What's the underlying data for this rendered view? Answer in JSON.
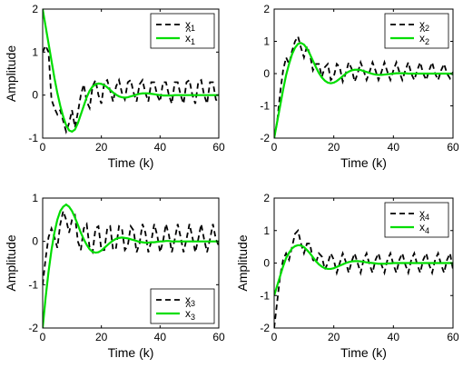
{
  "chart_data": [
    {
      "type": "line",
      "x": [
        0,
        1,
        2,
        3,
        4,
        5,
        6,
        7,
        8,
        9,
        10,
        11,
        12,
        13,
        14,
        15,
        16,
        17,
        18,
        19,
        20,
        21,
        22,
        23,
        24,
        25,
        26,
        27,
        28,
        29,
        30,
        31,
        32,
        33,
        34,
        35,
        36,
        37,
        38,
        39,
        40,
        41,
        42,
        43,
        44,
        45,
        46,
        47,
        48,
        49,
        50,
        51,
        52,
        53,
        54,
        55,
        56,
        57,
        58,
        59,
        60
      ],
      "series": [
        {
          "name": "x",
          "sub": "1",
          "hat": false,
          "color": "#000000",
          "dash": "6,4",
          "values": [
            1.0,
            1.15,
            1.0,
            -0.1,
            -0.3,
            -0.45,
            -0.35,
            -0.6,
            -0.85,
            -0.65,
            -0.35,
            -0.75,
            -0.4,
            0.0,
            0.25,
            -0.15,
            -0.3,
            0.2,
            0.35,
            0.0,
            -0.2,
            0.3,
            0.35,
            0.1,
            -0.15,
            0.2,
            0.35,
            0.05,
            -0.1,
            0.3,
            0.35,
            0.05,
            -0.15,
            0.25,
            0.35,
            0.05,
            -0.15,
            0.3,
            0.3,
            0.0,
            -0.15,
            0.3,
            0.3,
            0.0,
            -0.2,
            0.3,
            0.3,
            0.0,
            -0.2,
            0.3,
            0.35,
            0.0,
            -0.2,
            0.3,
            0.35,
            0.0,
            -0.2,
            0.3,
            0.3,
            -0.1,
            -0.2
          ]
        },
        {
          "name": "x",
          "sub": "1",
          "hat": true,
          "color": "#00dd00",
          "dash": "",
          "values": [
            2.0,
            1.6,
            1.2,
            0.8,
            0.4,
            0.05,
            -0.25,
            -0.5,
            -0.7,
            -0.82,
            -0.85,
            -0.8,
            -0.65,
            -0.45,
            -0.25,
            -0.05,
            0.1,
            0.2,
            0.25,
            0.27,
            0.26,
            0.23,
            0.18,
            0.12,
            0.06,
            0.01,
            -0.03,
            -0.05,
            -0.06,
            -0.05,
            -0.03,
            -0.01,
            0.01,
            0.03,
            0.04,
            0.04,
            0.04,
            0.03,
            0.02,
            0.01,
            0.0,
            -0.01,
            -0.01,
            -0.01,
            -0.01,
            0.0,
            0.0,
            0.0,
            0.0,
            0.0,
            0.0,
            0.0,
            0.0,
            0.0,
            0.0,
            0.0,
            0.0,
            0.0,
            0.0,
            0.0,
            0.0
          ]
        }
      ],
      "xlabel": "Time (k)",
      "ylabel": "Amplitude",
      "xlim": [
        0,
        60
      ],
      "ylim": [
        -1,
        2
      ],
      "xticks": [
        "0",
        "20",
        "40",
        "60"
      ],
      "yticks": [
        "-1",
        "0",
        "1",
        "2"
      ],
      "legend": "top-right"
    },
    {
      "type": "line",
      "x": [
        0,
        1,
        2,
        3,
        4,
        5,
        6,
        7,
        8,
        9,
        10,
        11,
        12,
        13,
        14,
        15,
        16,
        17,
        18,
        19,
        20,
        21,
        22,
        23,
        24,
        25,
        26,
        27,
        28,
        29,
        30,
        31,
        32,
        33,
        34,
        35,
        36,
        37,
        38,
        39,
        40,
        41,
        42,
        43,
        44,
        45,
        46,
        47,
        48,
        49,
        50,
        51,
        52,
        53,
        54,
        55,
        56,
        57,
        58,
        59,
        60
      ],
      "series": [
        {
          "name": "x",
          "sub": "2",
          "hat": false,
          "color": "#000000",
          "dash": "6,4",
          "values": [
            -2.0,
            -1.5,
            -0.6,
            0.1,
            0.5,
            0.3,
            0.7,
            1.0,
            1.15,
            0.8,
            0.5,
            0.85,
            0.6,
            0.1,
            0.3,
            0.3,
            -0.1,
            0.2,
            0.3,
            -0.2,
            -0.1,
            0.3,
            0.2,
            -0.25,
            0.0,
            0.35,
            0.15,
            -0.25,
            0.0,
            0.35,
            0.1,
            -0.2,
            0.05,
            0.35,
            0.1,
            -0.2,
            0.05,
            0.35,
            0.05,
            -0.2,
            0.1,
            0.35,
            0.05,
            -0.2,
            0.1,
            0.35,
            0.0,
            -0.2,
            0.1,
            0.35,
            0.0,
            -0.2,
            0.1,
            0.35,
            0.0,
            -0.2,
            0.1,
            0.3,
            0.0,
            -0.15,
            0.05
          ]
        },
        {
          "name": "x",
          "sub": "2",
          "hat": true,
          "color": "#00dd00",
          "dash": "",
          "values": [
            -2.0,
            -1.5,
            -1.0,
            -0.5,
            -0.05,
            0.3,
            0.6,
            0.8,
            0.92,
            0.95,
            0.9,
            0.78,
            0.6,
            0.4,
            0.2,
            0.02,
            -0.12,
            -0.22,
            -0.28,
            -0.3,
            -0.28,
            -0.23,
            -0.16,
            -0.08,
            0.0,
            0.06,
            0.1,
            0.12,
            0.12,
            0.11,
            0.08,
            0.05,
            0.02,
            -0.01,
            -0.03,
            -0.04,
            -0.04,
            -0.03,
            -0.02,
            -0.01,
            0.0,
            0.01,
            0.01,
            0.01,
            0.01,
            0.0,
            0.0,
            0.0,
            0.0,
            0.0,
            0.0,
            0.0,
            0.0,
            0.0,
            0.0,
            0.0,
            0.0,
            0.0,
            0.0,
            0.0,
            0.0
          ]
        }
      ],
      "xlabel": "Time (k)",
      "ylabel": "",
      "xlim": [
        0,
        60
      ],
      "ylim": [
        -2,
        2
      ],
      "xticks": [
        "0",
        "20",
        "40",
        "60"
      ],
      "yticks": [
        "-2",
        "-1",
        "0",
        "1",
        "2"
      ],
      "legend": "top-right"
    },
    {
      "type": "line",
      "x": [
        0,
        1,
        2,
        3,
        4,
        5,
        6,
        7,
        8,
        9,
        10,
        11,
        12,
        13,
        14,
        15,
        16,
        17,
        18,
        19,
        20,
        21,
        22,
        23,
        24,
        25,
        26,
        27,
        28,
        29,
        30,
        31,
        32,
        33,
        34,
        35,
        36,
        37,
        38,
        39,
        40,
        41,
        42,
        43,
        44,
        45,
        46,
        47,
        48,
        49,
        50,
        51,
        52,
        53,
        54,
        55,
        56,
        57,
        58,
        59,
        60
      ],
      "series": [
        {
          "name": "x",
          "sub": "3",
          "hat": false,
          "color": "#000000",
          "dash": "6,4",
          "values": [
            -1.0,
            -0.4,
            0.1,
            0.3,
            0.1,
            -0.15,
            0.4,
            0.7,
            0.5,
            0.2,
            0.5,
            0.6,
            0.0,
            -0.2,
            0.3,
            0.4,
            -0.15,
            -0.25,
            0.3,
            0.35,
            -0.2,
            -0.2,
            0.3,
            0.35,
            -0.2,
            -0.15,
            0.35,
            0.3,
            -0.2,
            -0.1,
            0.35,
            0.25,
            -0.25,
            -0.05,
            0.4,
            0.2,
            -0.25,
            0.0,
            0.4,
            0.15,
            -0.25,
            0.0,
            0.4,
            0.15,
            -0.25,
            0.05,
            0.4,
            0.1,
            -0.25,
            0.05,
            0.4,
            0.1,
            -0.25,
            0.05,
            0.4,
            0.05,
            -0.25,
            0.05,
            0.4,
            0.05,
            -0.1
          ]
        },
        {
          "name": "x",
          "sub": "3",
          "hat": true,
          "color": "#00dd00",
          "dash": "",
          "values": [
            -2.0,
            -1.3,
            -0.7,
            -0.2,
            0.2,
            0.5,
            0.7,
            0.8,
            0.85,
            0.8,
            0.7,
            0.55,
            0.38,
            0.2,
            0.05,
            -0.08,
            -0.18,
            -0.24,
            -0.26,
            -0.25,
            -0.21,
            -0.15,
            -0.09,
            -0.03,
            0.02,
            0.06,
            0.08,
            0.09,
            0.08,
            0.07,
            0.05,
            0.03,
            0.01,
            -0.01,
            -0.02,
            -0.03,
            -0.03,
            -0.02,
            -0.02,
            -0.01,
            0.0,
            0.0,
            0.01,
            0.01,
            0.0,
            0.0,
            0.0,
            0.0,
            0.0,
            0.0,
            0.0,
            0.0,
            0.0,
            0.0,
            0.0,
            0.0,
            0.0,
            0.0,
            0.0,
            0.0,
            0.0
          ]
        }
      ],
      "xlabel": "Time (k)",
      "ylabel": "Amplitude",
      "xlim": [
        0,
        60
      ],
      "ylim": [
        -2,
        1
      ],
      "xticks": [
        "0",
        "20",
        "40",
        "60"
      ],
      "yticks": [
        "-2",
        "-1",
        "0",
        "1"
      ],
      "legend": "bottom-right"
    },
    {
      "type": "line",
      "x": [
        0,
        1,
        2,
        3,
        4,
        5,
        6,
        7,
        8,
        9,
        10,
        11,
        12,
        13,
        14,
        15,
        16,
        17,
        18,
        19,
        20,
        21,
        22,
        23,
        24,
        25,
        26,
        27,
        28,
        29,
        30,
        31,
        32,
        33,
        34,
        35,
        36,
        37,
        38,
        39,
        40,
        41,
        42,
        43,
        44,
        45,
        46,
        47,
        48,
        49,
        50,
        51,
        52,
        53,
        54,
        55,
        56,
        57,
        58,
        59,
        60
      ],
      "series": [
        {
          "name": "x",
          "sub": "4",
          "hat": false,
          "color": "#000000",
          "dash": "6,4",
          "values": [
            -2.0,
            -1.2,
            -0.4,
            0.1,
            0.3,
            0.1,
            0.5,
            0.9,
            1.0,
            0.6,
            0.3,
            0.6,
            0.6,
            0.1,
            0.0,
            0.3,
            0.2,
            -0.2,
            0.0,
            0.3,
            0.1,
            -0.3,
            0.0,
            0.3,
            0.05,
            -0.3,
            0.05,
            0.3,
            0.0,
            -0.3,
            0.1,
            0.3,
            -0.05,
            -0.3,
            0.1,
            0.3,
            -0.05,
            -0.3,
            0.1,
            0.3,
            -0.05,
            -0.3,
            0.1,
            0.3,
            -0.05,
            -0.3,
            0.1,
            0.3,
            -0.05,
            -0.3,
            0.1,
            0.3,
            -0.05,
            -0.3,
            0.1,
            0.3,
            -0.05,
            -0.3,
            0.1,
            0.3,
            -0.2
          ]
        },
        {
          "name": "x",
          "sub": "4",
          "hat": true,
          "color": "#00dd00",
          "dash": "",
          "values": [
            -1.0,
            -0.7,
            -0.4,
            -0.1,
            0.15,
            0.32,
            0.45,
            0.52,
            0.55,
            0.54,
            0.49,
            0.4,
            0.3,
            0.18,
            0.06,
            -0.04,
            -0.11,
            -0.16,
            -0.18,
            -0.18,
            -0.16,
            -0.12,
            -0.08,
            -0.04,
            0.0,
            0.03,
            0.05,
            0.06,
            0.06,
            0.05,
            0.04,
            0.02,
            0.01,
            0.0,
            -0.01,
            -0.02,
            -0.02,
            -0.02,
            -0.01,
            -0.01,
            0.0,
            0.0,
            0.0,
            0.0,
            0.0,
            0.0,
            0.0,
            0.0,
            0.0,
            0.0,
            0.0,
            0.0,
            0.0,
            0.0,
            0.0,
            0.0,
            0.0,
            0.0,
            0.0,
            0.0,
            0.0
          ]
        }
      ],
      "xlabel": "Time (k)",
      "ylabel": "Amplitude",
      "xlim": [
        0,
        60
      ],
      "ylim": [
        -2,
        2
      ],
      "xticks": [
        "0",
        "20",
        "40",
        "60"
      ],
      "yticks": [
        "-2",
        "-1",
        "0",
        "1",
        "2"
      ],
      "legend": "top-right"
    }
  ]
}
